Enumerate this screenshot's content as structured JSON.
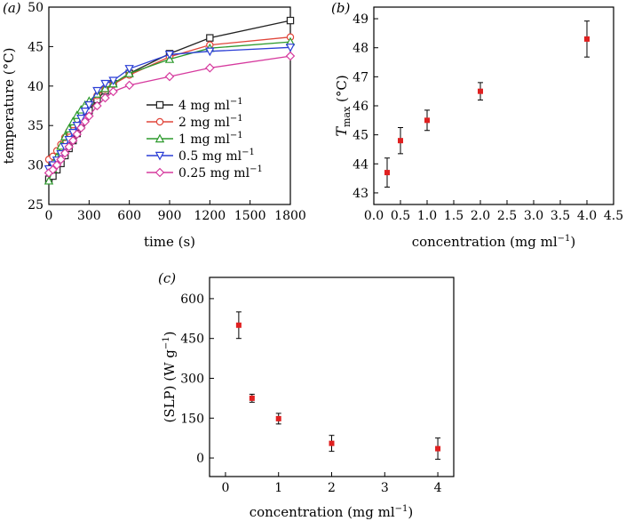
{
  "chart_data": [
    {
      "panel": "(a)",
      "type": "line",
      "xlabel": "time (s)",
      "ylabel": "temperature (°C)",
      "xlim": [
        0,
        1800
      ],
      "ylim": [
        25,
        50
      ],
      "xticks": [
        0,
        300,
        600,
        900,
        1200,
        1500,
        1800
      ],
      "yticks": [
        25,
        30,
        35,
        40,
        45,
        50
      ],
      "legend_position": "center-right",
      "series": [
        {
          "name": "4 mg ml",
          "sup": "−1",
          "color": "#222222",
          "marker": "square",
          "x": [
            0,
            30,
            60,
            90,
            120,
            150,
            180,
            210,
            240,
            270,
            300,
            360,
            420,
            480,
            600,
            900,
            1200,
            1800
          ],
          "y": [
            28.2,
            28.6,
            29.4,
            30.2,
            31.2,
            32.1,
            33.1,
            34.0,
            35.0,
            36.0,
            36.9,
            38.3,
            39.4,
            40.3,
            41.6,
            44.1,
            46.1,
            48.3
          ]
        },
        {
          "name": "2 mg ml",
          "sup": "−1",
          "color": "#e0453a",
          "marker": "circle",
          "x": [
            0,
            30,
            60,
            90,
            120,
            150,
            180,
            210,
            240,
            270,
            300,
            360,
            420,
            480,
            600,
            900,
            1200,
            1800
          ],
          "y": [
            30.7,
            31.1,
            31.8,
            32.6,
            33.5,
            34.3,
            35.1,
            35.8,
            36.5,
            37.2,
            37.8,
            38.8,
            39.6,
            40.2,
            41.4,
            43.7,
            45.2,
            46.2
          ]
        },
        {
          "name": "1 mg ml",
          "sup": "−1",
          "color": "#2d9a2d",
          "marker": "triangle-up",
          "x": [
            0,
            30,
            60,
            90,
            120,
            150,
            180,
            210,
            240,
            270,
            300,
            360,
            420,
            480,
            600,
            900,
            1200,
            1800
          ],
          "y": [
            28.0,
            29.5,
            31.0,
            32.4,
            33.6,
            34.6,
            35.5,
            36.3,
            37.0,
            37.6,
            38.1,
            39.0,
            39.7,
            40.3,
            41.6,
            43.4,
            44.8,
            45.6
          ]
        },
        {
          "name": "0.5 mg ml",
          "sup": "−1",
          "color": "#2b3fd6",
          "marker": "triangle-down",
          "x": [
            0,
            30,
            60,
            90,
            120,
            150,
            180,
            210,
            240,
            270,
            300,
            360,
            420,
            480,
            600,
            900,
            1200,
            1800
          ],
          "y": [
            29.5,
            30.0,
            30.6,
            31.4,
            32.3,
            33.2,
            34.1,
            35.0,
            35.9,
            36.8,
            37.6,
            39.4,
            40.3,
            40.7,
            42.2,
            44.0,
            44.4,
            44.9
          ]
        },
        {
          "name": "0.25 mg ml",
          "sup": "−1",
          "color": "#d63a9e",
          "marker": "diamond",
          "x": [
            0,
            30,
            60,
            90,
            120,
            150,
            180,
            210,
            240,
            270,
            300,
            360,
            420,
            480,
            600,
            900,
            1200,
            1800
          ],
          "y": [
            29.0,
            29.4,
            30.0,
            30.7,
            31.5,
            32.3,
            33.1,
            33.9,
            34.7,
            35.5,
            36.2,
            37.5,
            38.5,
            39.3,
            40.1,
            41.2,
            42.3,
            43.8
          ]
        }
      ]
    },
    {
      "panel": "(b)",
      "type": "scatter",
      "xlabel": "concentration (mg ml",
      "xlabel_sup": "−1",
      "xlabel_end": ")",
      "ylabel": "T",
      "ylabel_sub": "max",
      "ylabel_end": " (°C)",
      "xlim": [
        0,
        4.5
      ],
      "ylim": [
        42.6,
        49.4
      ],
      "xticks": [
        0.0,
        0.5,
        1.0,
        1.5,
        2.0,
        2.5,
        3.0,
        3.5,
        4.0,
        4.5
      ],
      "xtick_labels": [
        "0.0",
        "0.5",
        "1.0",
        "1.5",
        "2.0",
        "2.5",
        "3.0",
        "3.5",
        "4.0",
        "4.5"
      ],
      "yticks": [
        43,
        44,
        45,
        46,
        47,
        48,
        49
      ],
      "x": [
        0.25,
        0.5,
        1.0,
        2.0,
        4.0
      ],
      "y": [
        43.7,
        44.8,
        45.5,
        46.5,
        48.3
      ],
      "err": [
        0.5,
        0.45,
        0.35,
        0.3,
        0.62
      ],
      "color": "#e02020"
    },
    {
      "panel": "(c)",
      "type": "scatter",
      "xlabel": "concentration (mg ml",
      "xlabel_sup": "−1",
      "xlabel_end": ")",
      "ylabel": "(SLP) (W g",
      "ylabel_sup": "−1",
      "ylabel_end": ")",
      "xlim": [
        -0.3,
        4.3
      ],
      "ylim": [
        -70,
        680
      ],
      "xticks": [
        0,
        1,
        2,
        3,
        4
      ],
      "yticks": [
        0,
        150,
        300,
        450,
        600
      ],
      "x": [
        0.25,
        0.5,
        1.0,
        2.0,
        4.0
      ],
      "y": [
        500,
        225,
        148,
        55,
        35
      ],
      "err": [
        50,
        15,
        20,
        30,
        40
      ],
      "color": "#e02020"
    }
  ]
}
